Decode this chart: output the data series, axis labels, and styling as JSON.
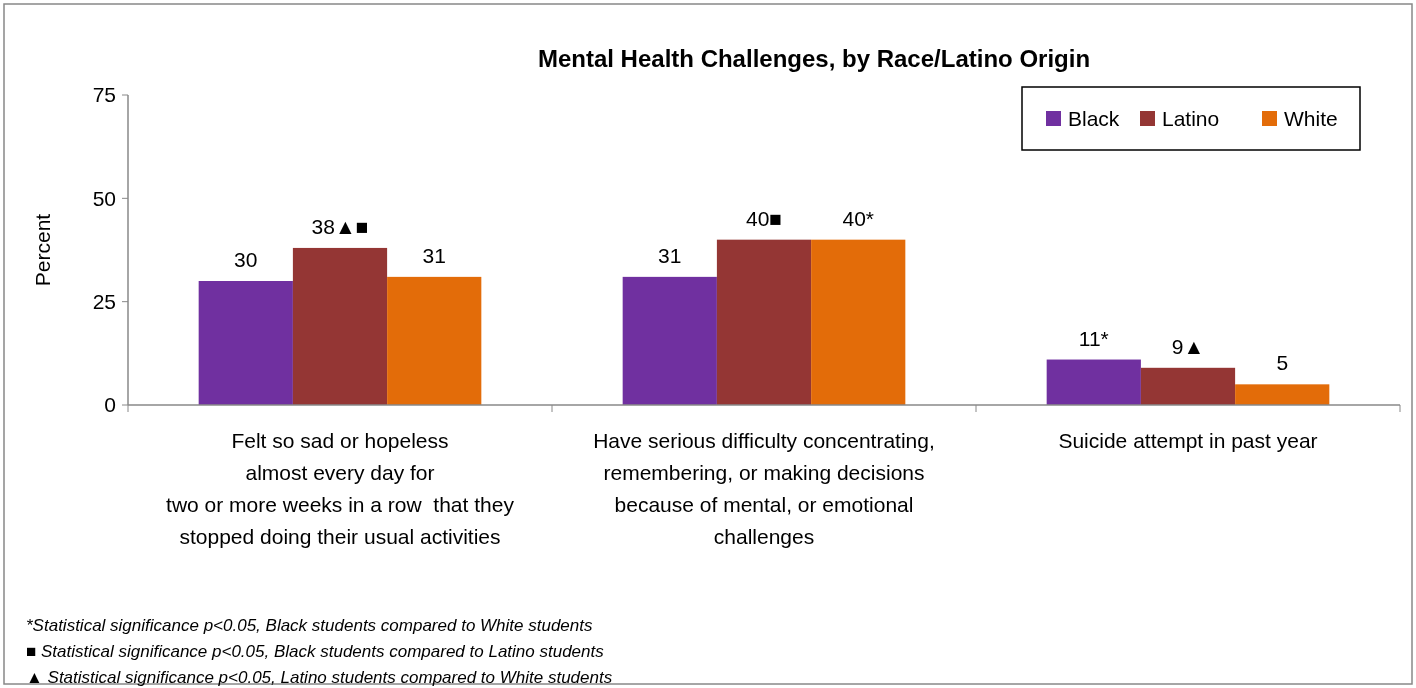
{
  "chart_data": {
    "type": "bar",
    "title": "Mental Health Challenges, by Race/Latino Origin",
    "ylabel": "Percent",
    "categories": [
      "Felt so sad or hopeless\nalmost every day for\ntwo or more weeks in a row  that they\nstopped doing their usual activities",
      "Have serious difficulty concentrating,\nremembering, or making decisions\nbecause of mental, or emotional\nchallenges",
      "Suicide attempt in past year"
    ],
    "series": [
      {
        "name": "Black",
        "color": "#7030a0",
        "values": [
          30,
          31,
          11
        ],
        "value_labels": [
          "30",
          "31",
          "11*"
        ]
      },
      {
        "name": "Latino",
        "color": "#943634",
        "values": [
          38,
          40,
          9
        ],
        "value_labels": [
          "38▲■",
          "40■",
          "9▲"
        ]
      },
      {
        "name": "White",
        "color": "#e36c09",
        "values": [
          31,
          40,
          5
        ],
        "value_labels": [
          "31",
          "40*",
          "5"
        ]
      }
    ],
    "ylim": [
      0,
      75
    ],
    "yticks": [
      0,
      25,
      50,
      75
    ],
    "grid": false,
    "legend": "top right",
    "annotations": [
      "*Statistical significance p<0.05, Black students compared to White students",
      "■ Statistical significance p<0.05, Black students compared to Latino students",
      "▲ Statistical significance p<0.05, Latino students compared to White students"
    ]
  }
}
